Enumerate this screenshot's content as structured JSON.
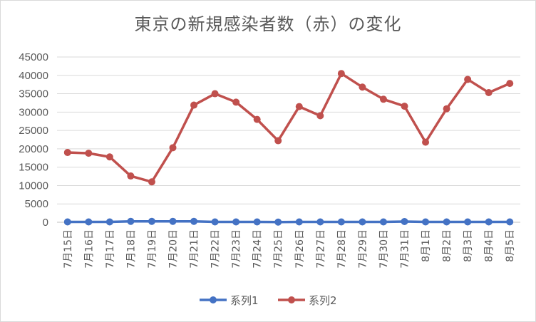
{
  "chart_data": {
    "type": "line",
    "title": "東京の新規感染者数（赤）の変化",
    "xlabel": "",
    "ylabel": "",
    "ylim": [
      0,
      45000
    ],
    "yticks": [
      0,
      5000,
      10000,
      15000,
      20000,
      25000,
      30000,
      35000,
      40000,
      45000
    ],
    "grid": true,
    "legend": "bottom",
    "categories": [
      "7月15日",
      "7月16日",
      "7月17日",
      "7月18日",
      "7月19日",
      "7月20日",
      "7月21日",
      "7月22日",
      "7月23日",
      "7月24日",
      "7月25日",
      "7月26日",
      "7月27日",
      "7月28日",
      "7月29日",
      "7月30日",
      "7月31日",
      "8月1日",
      "8月2日",
      "8月3日",
      "8月4日",
      "8月5日"
    ],
    "series": [
      {
        "name": "系列1",
        "color": "#4472c4",
        "values": [
          100,
          100,
          100,
          250,
          250,
          250,
          250,
          100,
          100,
          100,
          50,
          100,
          100,
          100,
          100,
          100,
          200,
          100,
          100,
          100,
          100,
          100
        ]
      },
      {
        "name": "系列2",
        "color": "#c0504d",
        "values": [
          19000,
          18800,
          17800,
          12600,
          11000,
          20300,
          31900,
          35000,
          32700,
          28000,
          22200,
          31500,
          29000,
          40500,
          36800,
          33500,
          31600,
          21800,
          30900,
          38900,
          35300,
          37800
        ]
      }
    ]
  }
}
